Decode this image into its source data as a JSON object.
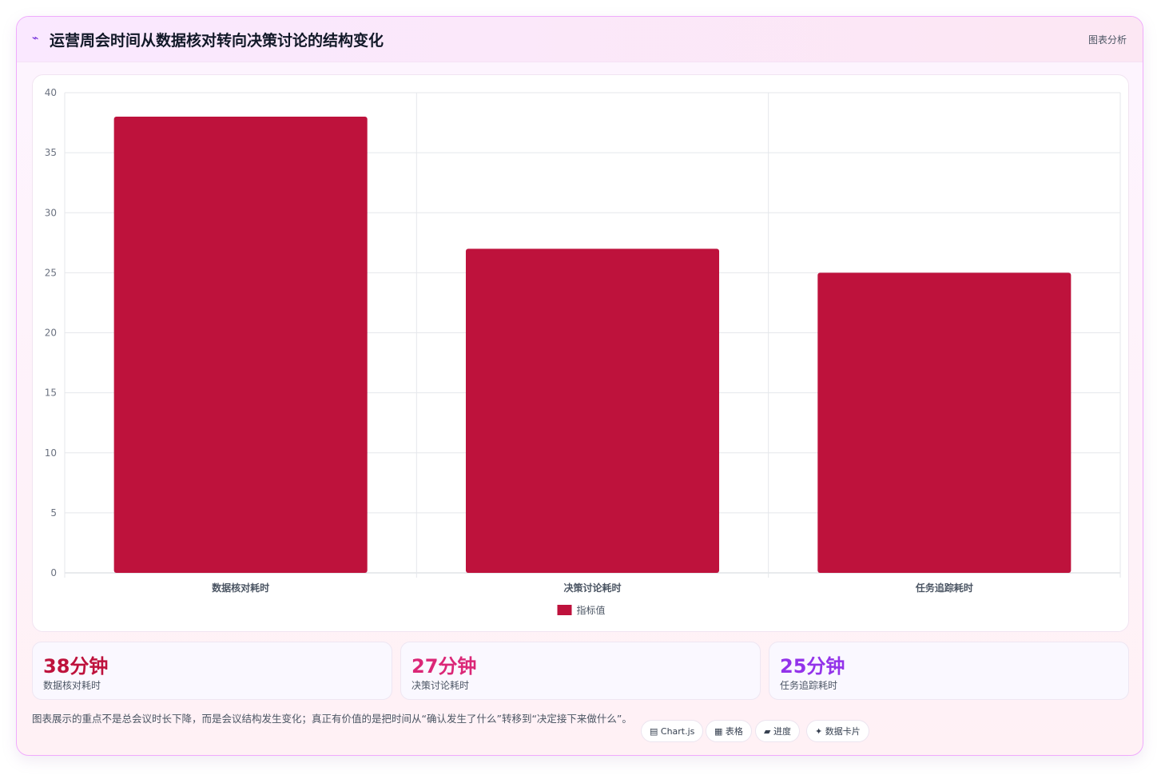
{
  "header": {
    "icon": "chart-line-icon",
    "icon_glyph": "⌁",
    "title": "运营周会时间从数据核对转向决策讨论的结构变化",
    "tag": "图表分析"
  },
  "chart_data": {
    "type": "bar",
    "categories": [
      "数据核对耗时",
      "决策讨论耗时",
      "任务追踪耗时"
    ],
    "series": [
      {
        "name": "指标值",
        "values": [
          38,
          27,
          25
        ],
        "color": "#be123c"
      }
    ],
    "ylim": [
      0,
      40
    ],
    "yticks": [
      0,
      5,
      10,
      15,
      20,
      25,
      30,
      35,
      40
    ],
    "grid": true,
    "legend_position": "bottom"
  },
  "stats": [
    {
      "value": "38分钟",
      "label": "数据核对耗时",
      "color": "#be123c"
    },
    {
      "value": "27分钟",
      "label": "决策讨论耗时",
      "color": "#db2777"
    },
    {
      "value": "25分钟",
      "label": "任务追踪耗时",
      "color": "#9333ea"
    }
  ],
  "note": "图表展示的重点不是总会议时长下降，而是会议结构发生变化；真正有价值的是把时间从“确认发生了什么”转移到“决定接下来做什么”。",
  "chips": [
    {
      "label": "▤ Chart.js",
      "icon": "chart-icon"
    },
    {
      "label": "▦ 表格",
      "icon": "table-icon"
    },
    {
      "label": "▰ 进度",
      "icon": "progress-icon"
    },
    {
      "label": "✦ 数据卡片",
      "icon": "sparkle-icon"
    }
  ]
}
